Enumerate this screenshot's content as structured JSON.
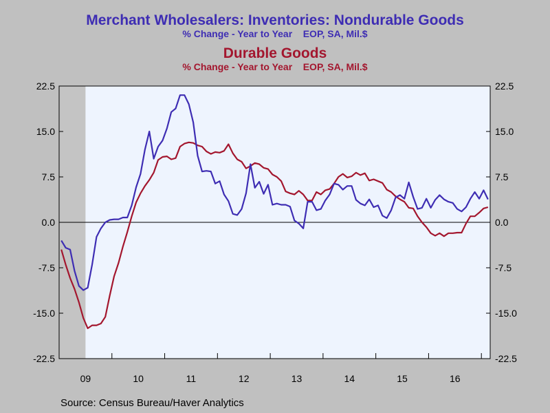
{
  "titles": {
    "series1_title": "Merchant Wholesalers: Inventories: Nondurable Goods",
    "series1_subtitle": "% Change - Year to Year    EOP, SA, Mil.$",
    "series2_title": "Durable Goods",
    "series2_subtitle": "% Change - Year to Year    EOP, SA, Mil.$"
  },
  "source": "Source:  Census Bureau/Haver Analytics",
  "colors": {
    "background": "#C0C0C0",
    "plot_area": "#EEF4FE",
    "nondurable": "#3E2DB3",
    "durable": "#A3162E",
    "recession": "#C4C4C4"
  },
  "chart_data": {
    "type": "line",
    "x_start": "2009-01",
    "frequency": "monthly",
    "x_tick_labels": [
      "09",
      "10",
      "11",
      "12",
      "13",
      "14",
      "15",
      "16"
    ],
    "y_ticks": [
      "22.5",
      "15.0",
      "7.5",
      "0.0",
      "-7.5",
      "-15.0",
      "-22.5"
    ],
    "ylim": [
      -22.5,
      22.5
    ],
    "zero_line": true,
    "recession_shading": {
      "from": "2009-01",
      "to": "2009-06"
    },
    "series": [
      {
        "key": "nondurable",
        "values": [
          -3.0,
          -4.2,
          -4.5,
          -8.0,
          -10.5,
          -11.2,
          -10.8,
          -7.0,
          -2.4,
          -1.0,
          0.0,
          0.4,
          0.5,
          0.5,
          0.8,
          0.8,
          2.8,
          5.8,
          8.0,
          12.0,
          15.0,
          10.5,
          12.5,
          13.5,
          15.5,
          18.2,
          18.8,
          21.0,
          21.0,
          19.5,
          16.5,
          11.0,
          8.4,
          8.5,
          8.4,
          6.4,
          6.8,
          4.6,
          3.5,
          1.4,
          1.2,
          2.2,
          4.8,
          9.6,
          5.7,
          6.7,
          4.7,
          6.2,
          2.9,
          3.1,
          2.9,
          2.9,
          2.6,
          0.3,
          -0.2,
          -1.0,
          3.4,
          3.4,
          2.0,
          2.2,
          3.6,
          4.6,
          6.4,
          6.2,
          5.4,
          6.0,
          6.0,
          3.7,
          3.1,
          2.8,
          3.8,
          2.5,
          2.8,
          1.1,
          0.7,
          2.0,
          4.1,
          4.5,
          3.9,
          6.6,
          4.2,
          2.2,
          2.4,
          3.9,
          2.4,
          3.7,
          4.5,
          3.8,
          3.4,
          3.2,
          2.2,
          1.8,
          2.5,
          3.9,
          5.0,
          3.9,
          5.3,
          3.8
        ]
      },
      {
        "key": "durable",
        "values": [
          -4.5,
          -7.0,
          -9.2,
          -11.0,
          -13.2,
          -15.8,
          -17.5,
          -17.0,
          -17.0,
          -16.7,
          -15.6,
          -12.1,
          -8.9,
          -6.7,
          -4.0,
          -1.6,
          1.0,
          3.3,
          4.8,
          6.0,
          7.0,
          8.2,
          10.3,
          10.8,
          10.9,
          10.4,
          10.6,
          12.5,
          13.0,
          13.2,
          13.1,
          12.7,
          12.5,
          11.7,
          11.3,
          11.6,
          11.5,
          11.8,
          12.9,
          11.4,
          10.4,
          10.0,
          8.9,
          9.3,
          9.8,
          9.6,
          9.0,
          8.8,
          7.9,
          7.5,
          6.8,
          5.1,
          4.8,
          4.6,
          5.2,
          4.6,
          3.6,
          3.6,
          5.0,
          4.6,
          5.3,
          5.5,
          6.4,
          7.5,
          8.0,
          7.4,
          7.6,
          8.2,
          7.8,
          8.1,
          6.9,
          7.1,
          6.8,
          6.5,
          5.4,
          5.0,
          4.3,
          3.8,
          3.4,
          2.4,
          2.3,
          1.0,
          0.0,
          -0.8,
          -1.8,
          -2.2,
          -1.8,
          -2.3,
          -1.8,
          -1.8,
          -1.7,
          -1.7,
          -0.2,
          1.0,
          1.0,
          1.6,
          2.3,
          2.5
        ]
      }
    ]
  }
}
